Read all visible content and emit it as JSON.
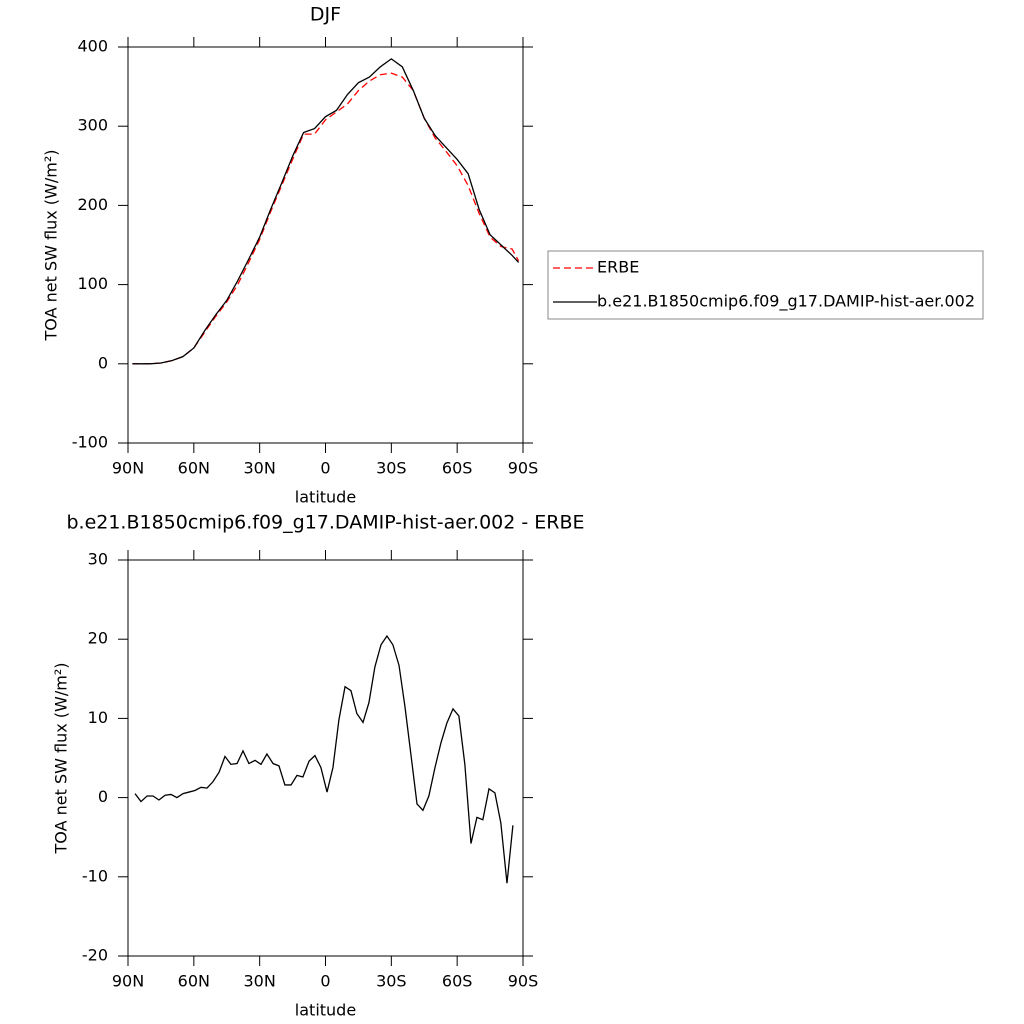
{
  "chart_data": [
    {
      "type": "line",
      "title": "DJF",
      "xlabel": "latitude",
      "ylabel": "TOA net SW flux (W/m²)",
      "x": [
        88,
        85,
        80,
        75,
        70,
        65,
        60,
        55,
        50,
        45,
        40,
        35,
        30,
        25,
        20,
        15,
        10,
        5,
        0,
        -5,
        -10,
        -15,
        -20,
        -25,
        -30,
        -35,
        -40,
        -45,
        -50,
        -55,
        -60,
        -65,
        -70,
        -75,
        -80,
        -85,
        -88
      ],
      "series": [
        {
          "name": "ERBE",
          "color": "#ff0000",
          "line_style": "dashed",
          "values": [
            0,
            0,
            0,
            1,
            4,
            9,
            20,
            40,
            60,
            78,
            100,
            128,
            157,
            192,
            225,
            258,
            290,
            290,
            308,
            318,
            328,
            345,
            357,
            365,
            367,
            362,
            345,
            310,
            285,
            268,
            250,
            225,
            190,
            160,
            148,
            145,
            130
          ]
        },
        {
          "name": "b.e21.B1850cmip6.f09_g17.DAMIP-hist-aer.002",
          "color": "#000000",
          "line_style": "solid",
          "values": [
            0,
            0,
            0,
            1,
            4,
            9,
            20,
            42,
            62,
            80,
            105,
            132,
            160,
            195,
            228,
            262,
            292,
            297,
            312,
            320,
            340,
            355,
            362,
            375,
            385,
            375,
            345,
            310,
            288,
            273,
            258,
            240,
            195,
            163,
            150,
            137,
            128
          ]
        }
      ],
      "xlim": [
        90,
        -90
      ],
      "xticks": [
        {
          "value": 90,
          "label": "90N"
        },
        {
          "value": 60,
          "label": "60N"
        },
        {
          "value": 30,
          "label": "30N"
        },
        0,
        {
          "value": -30,
          "label": "30S"
        },
        {
          "value": -60,
          "label": "60S"
        },
        {
          "value": -90,
          "label": "90S"
        }
      ],
      "ylim": [
        -100,
        400
      ],
      "yticks": [
        -100,
        0,
        100,
        200,
        300,
        400
      ],
      "legend": "right"
    },
    {
      "type": "line",
      "title": "b.e21.B1850cmip6.f09_g17.DAMIP-hist-aer.002 - ERBE",
      "xlabel": "latitude",
      "ylabel": "TOA net SW flux (W/m²)",
      "x": [
        86.8,
        84.1,
        81.3,
        78.6,
        75.9,
        73.1,
        70.4,
        67.7,
        64.9,
        62.2,
        59.5,
        56.7,
        54.0,
        51.3,
        48.5,
        45.8,
        43.1,
        40.3,
        37.6,
        34.9,
        32.1,
        29.4,
        26.7,
        23.9,
        21.2,
        18.5,
        15.7,
        13.0,
        10.3,
        7.5,
        4.8,
        2.1,
        -0.7,
        -3.4,
        -6.1,
        -8.9,
        -11.6,
        -14.3,
        -17.1,
        -19.8,
        -22.5,
        -25.3,
        -28.0,
        -30.7,
        -33.5,
        -36.2,
        -38.9,
        -41.7,
        -44.4,
        -47.1,
        -49.9,
        -52.6,
        -55.3,
        -58.1,
        -60.8,
        -63.5,
        -66.3,
        -69.0,
        -71.7,
        -74.5,
        -77.2,
        -79.9,
        -82.7,
        -85.4
      ],
      "color": "#000000",
      "values": [
        0.5,
        -0.5,
        0.2,
        0.2,
        -0.3,
        0.3,
        0.4,
        0,
        0.5,
        0.7,
        0.9,
        1.3,
        1.2,
        2,
        3.2,
        5.2,
        4.2,
        4.3,
        5.9,
        4.3,
        4.7,
        4.2,
        5.5,
        4.3,
        4.0,
        1.6,
        1.6,
        2.8,
        2.6,
        4.6,
        5.3,
        3.8,
        0.7,
        3.8,
        9.8,
        14,
        13.5,
        10.6,
        9.5,
        12,
        16.5,
        19.3,
        20.4,
        19.3,
        16.7,
        11.5,
        5.5,
        -0.8,
        -1.6,
        0.2,
        3.8,
        6.9,
        9.4,
        11.2,
        10.3,
        4.2,
        -5.8,
        -2.5,
        -2.8,
        1.1,
        0.6,
        -3.2,
        -10.8,
        -3.5
      ],
      "xlim": [
        90,
        -90
      ],
      "xticks": [
        {
          "value": 90,
          "label": "90N"
        },
        {
          "value": 60,
          "label": "60N"
        },
        {
          "value": 30,
          "label": "30N"
        },
        0,
        {
          "value": -30,
          "label": "30S"
        },
        {
          "value": -60,
          "label": "60S"
        },
        {
          "value": -90,
          "label": "90S"
        }
      ],
      "ylim": [
        -20,
        30
      ],
      "yticks": [
        -20,
        -10,
        0,
        10,
        20,
        30
      ]
    }
  ]
}
